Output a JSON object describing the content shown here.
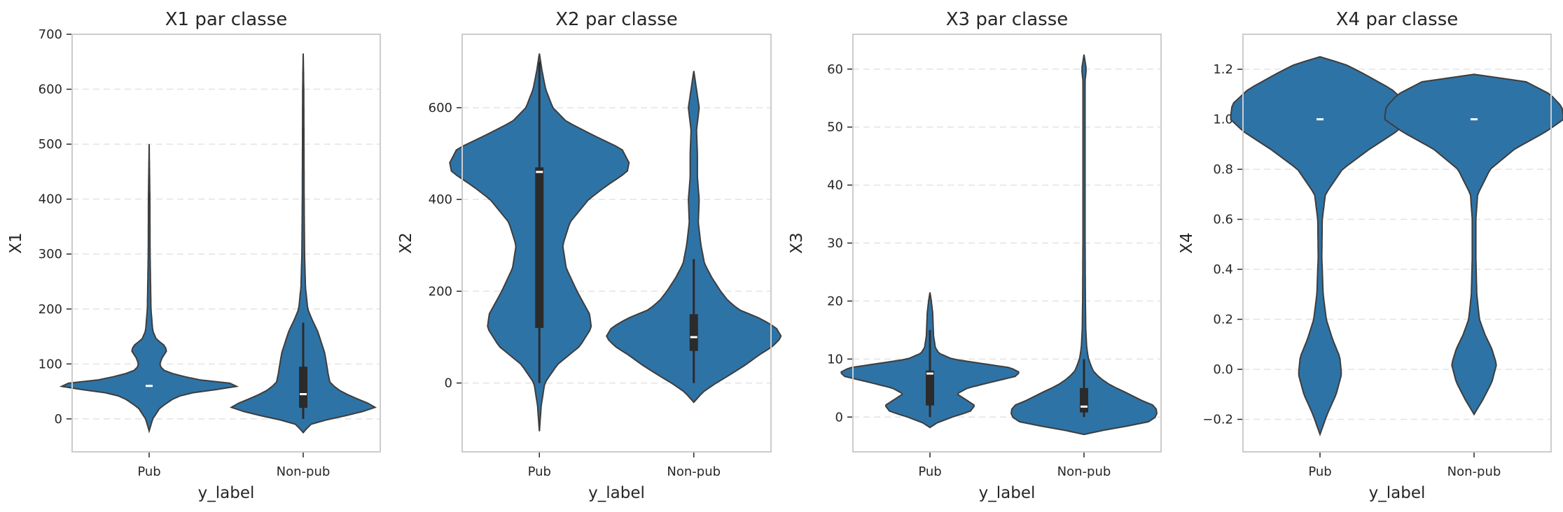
{
  "chart_data": [
    {
      "type": "violin",
      "title": "X1 par classe",
      "xlabel": "y_label",
      "ylabel": "X1",
      "ylim": [
        -60,
        700
      ],
      "yticks": [
        0,
        100,
        200,
        300,
        400,
        500,
        600,
        700
      ],
      "ytick_labels": [
        "0",
        "100",
        "200",
        "300",
        "400",
        "500",
        "600",
        "700"
      ],
      "grid": "y-dashed",
      "categories": [
        "Pub",
        "Non-pub"
      ],
      "series": [
        {
          "category": "Pub",
          "range": [
            -22,
            500
          ],
          "quartiles": [
            60,
            60,
            60
          ],
          "whiskers": [
            60,
            60
          ],
          "profile": [
            [
              -22,
              0.0
            ],
            [
              0,
              0.04
            ],
            [
              20,
              0.12
            ],
            [
              40,
              0.3
            ],
            [
              50,
              0.55
            ],
            [
              55,
              0.85
            ],
            [
              60,
              1.0
            ],
            [
              65,
              0.9
            ],
            [
              70,
              0.6
            ],
            [
              80,
              0.3
            ],
            [
              90,
              0.14
            ],
            [
              100,
              0.12
            ],
            [
              110,
              0.14
            ],
            [
              125,
              0.2
            ],
            [
              135,
              0.16
            ],
            [
              145,
              0.08
            ],
            [
              160,
              0.04
            ],
            [
              200,
              0.02
            ],
            [
              250,
              0.015
            ],
            [
              300,
              0.01
            ],
            [
              400,
              0.008
            ],
            [
              500,
              0.0
            ]
          ]
        },
        {
          "category": "Non-pub",
          "range": [
            -25,
            665
          ],
          "quartiles": [
            20,
            45,
            95
          ],
          "whiskers": [
            0,
            175
          ],
          "profile": [
            [
              -25,
              0.0
            ],
            [
              -10,
              0.08
            ],
            [
              0,
              0.3
            ],
            [
              10,
              0.6
            ],
            [
              22,
              0.82
            ],
            [
              30,
              0.7
            ],
            [
              40,
              0.55
            ],
            [
              50,
              0.42
            ],
            [
              65,
              0.3
            ],
            [
              80,
              0.28
            ],
            [
              100,
              0.26
            ],
            [
              120,
              0.24
            ],
            [
              140,
              0.2
            ],
            [
              160,
              0.16
            ],
            [
              180,
              0.1
            ],
            [
              200,
              0.05
            ],
            [
              240,
              0.025
            ],
            [
              300,
              0.015
            ],
            [
              400,
              0.01
            ],
            [
              500,
              0.008
            ],
            [
              600,
              0.006
            ],
            [
              665,
              0.0
            ]
          ]
        }
      ]
    },
    {
      "type": "violin",
      "title": "X2 par classe",
      "xlabel": "y_label",
      "ylabel": "X2",
      "ylim": [
        -150,
        760
      ],
      "yticks": [
        0,
        200,
        400,
        600
      ],
      "ytick_labels": [
        "0",
        "200",
        "400",
        "600"
      ],
      "grid": "y-dashed",
      "categories": [
        "Pub",
        "Non-pub"
      ],
      "series": [
        {
          "category": "Pub",
          "range": [
            -105,
            718
          ],
          "quartiles": [
            120,
            460,
            470
          ],
          "whiskers": [
            0,
            700
          ],
          "profile": [
            [
              -105,
              0.0
            ],
            [
              -50,
              0.02
            ],
            [
              0,
              0.06
            ],
            [
              40,
              0.2
            ],
            [
              80,
              0.45
            ],
            [
              120,
              0.58
            ],
            [
              150,
              0.56
            ],
            [
              200,
              0.42
            ],
            [
              250,
              0.3
            ],
            [
              300,
              0.26
            ],
            [
              350,
              0.34
            ],
            [
              400,
              0.55
            ],
            [
              430,
              0.75
            ],
            [
              460,
              0.98
            ],
            [
              480,
              1.0
            ],
            [
              510,
              0.92
            ],
            [
              540,
              0.6
            ],
            [
              570,
              0.3
            ],
            [
              600,
              0.15
            ],
            [
              640,
              0.07
            ],
            [
              680,
              0.03
            ],
            [
              718,
              0.0
            ]
          ]
        },
        {
          "category": "Non-pub",
          "range": [
            -42,
            680
          ],
          "quartiles": [
            70,
            100,
            150
          ],
          "whiskers": [
            0,
            270
          ],
          "profile": [
            [
              -42,
              0.0
            ],
            [
              -20,
              0.1
            ],
            [
              0,
              0.25
            ],
            [
              20,
              0.42
            ],
            [
              40,
              0.58
            ],
            [
              60,
              0.72
            ],
            [
              80,
              0.88
            ],
            [
              100,
              0.98
            ],
            [
              120,
              0.92
            ],
            [
              140,
              0.75
            ],
            [
              160,
              0.5
            ],
            [
              180,
              0.38
            ],
            [
              200,
              0.3
            ],
            [
              230,
              0.2
            ],
            [
              260,
              0.12
            ],
            [
              300,
              0.08
            ],
            [
              350,
              0.05
            ],
            [
              400,
              0.06
            ],
            [
              450,
              0.04
            ],
            [
              500,
              0.04
            ],
            [
              550,
              0.03
            ],
            [
              600,
              0.06
            ],
            [
              640,
              0.03
            ],
            [
              680,
              0.0
            ]
          ]
        }
      ]
    },
    {
      "type": "violin",
      "title": "X3 par classe",
      "xlabel": "y_label",
      "ylabel": "X3",
      "ylim": [
        -6,
        66
      ],
      "yticks": [
        0,
        10,
        20,
        30,
        40,
        50,
        60
      ],
      "ytick_labels": [
        "0",
        "10",
        "20",
        "30",
        "40",
        "50",
        "60"
      ],
      "grid": "y-dashed",
      "categories": [
        "Pub",
        "Non-pub"
      ],
      "series": [
        {
          "category": "Pub",
          "range": [
            -1.8,
            21.5
          ],
          "quartiles": [
            2,
            7.5,
            8
          ],
          "whiskers": [
            0,
            15
          ],
          "profile": [
            [
              -1.8,
              0.0
            ],
            [
              -1,
              0.08
            ],
            [
              0,
              0.25
            ],
            [
              1,
              0.45
            ],
            [
              2,
              0.5
            ],
            [
              3,
              0.4
            ],
            [
              4,
              0.3
            ],
            [
              5,
              0.42
            ],
            [
              6,
              0.68
            ],
            [
              7,
              0.95
            ],
            [
              7.7,
              1.0
            ],
            [
              8.5,
              0.9
            ],
            [
              9.3,
              0.55
            ],
            [
              10,
              0.25
            ],
            [
              11,
              0.1
            ],
            [
              12,
              0.06
            ],
            [
              14,
              0.04
            ],
            [
              16,
              0.035
            ],
            [
              18,
              0.03
            ],
            [
              20,
              0.015
            ],
            [
              21.5,
              0.0
            ]
          ]
        },
        {
          "category": "Non-pub",
          "range": [
            -3,
            62.5
          ],
          "quartiles": [
            0.8,
            1.8,
            5
          ],
          "whiskers": [
            0,
            10
          ],
          "profile": [
            [
              -3,
              0.0
            ],
            [
              -2,
              0.3
            ],
            [
              -1,
              0.7
            ],
            [
              0,
              0.8
            ],
            [
              1,
              0.82
            ],
            [
              2,
              0.78
            ],
            [
              3,
              0.62
            ],
            [
              4,
              0.5
            ],
            [
              5,
              0.36
            ],
            [
              6,
              0.24
            ],
            [
              7,
              0.16
            ],
            [
              8,
              0.1
            ],
            [
              10,
              0.05
            ],
            [
              12,
              0.03
            ],
            [
              15,
              0.02
            ],
            [
              20,
              0.015
            ],
            [
              30,
              0.012
            ],
            [
              40,
              0.012
            ],
            [
              50,
              0.012
            ],
            [
              58,
              0.012
            ],
            [
              60,
              0.025
            ],
            [
              62.5,
              0.0
            ]
          ]
        }
      ]
    },
    {
      "type": "violin",
      "title": "X4 par classe",
      "xlabel": "y_label",
      "ylabel": "X4",
      "ylim": [
        -0.33,
        1.34
      ],
      "yticks": [
        -0.2,
        0.0,
        0.2,
        0.4,
        0.6,
        0.8,
        1.0,
        1.2
      ],
      "ytick_labels": [
        "−0.2",
        "0.0",
        "0.2",
        "0.4",
        "0.6",
        "0.8",
        "1.0",
        "1.2"
      ],
      "grid": "y-dashed",
      "categories": [
        "Pub",
        "Non-pub"
      ],
      "series": [
        {
          "category": "Pub",
          "range": [
            -0.26,
            1.25
          ],
          "quartiles": [
            1.0,
            1.0,
            1.0
          ],
          "whiskers": [
            1.0,
            1.0
          ],
          "profile": [
            [
              -0.26,
              0.0
            ],
            [
              -0.18,
              0.08
            ],
            [
              -0.1,
              0.18
            ],
            [
              -0.02,
              0.24
            ],
            [
              0.05,
              0.22
            ],
            [
              0.12,
              0.14
            ],
            [
              0.2,
              0.07
            ],
            [
              0.3,
              0.035
            ],
            [
              0.45,
              0.02
            ],
            [
              0.6,
              0.025
            ],
            [
              0.7,
              0.06
            ],
            [
              0.8,
              0.25
            ],
            [
              0.88,
              0.55
            ],
            [
              0.95,
              0.85
            ],
            [
              1.0,
              1.0
            ],
            [
              1.06,
              0.98
            ],
            [
              1.12,
              0.8
            ],
            [
              1.18,
              0.5
            ],
            [
              1.22,
              0.28
            ],
            [
              1.25,
              0.0
            ]
          ]
        },
        {
          "category": "Non-pub",
          "range": [
            -0.18,
            1.18
          ],
          "quartiles": [
            1.0,
            1.0,
            1.0
          ],
          "whiskers": [
            1.0,
            1.0
          ],
          "profile": [
            [
              -0.18,
              0.0
            ],
            [
              -0.12,
              0.1
            ],
            [
              -0.05,
              0.2
            ],
            [
              0.02,
              0.25
            ],
            [
              0.08,
              0.2
            ],
            [
              0.14,
              0.12
            ],
            [
              0.2,
              0.06
            ],
            [
              0.3,
              0.03
            ],
            [
              0.45,
              0.02
            ],
            [
              0.6,
              0.02
            ],
            [
              0.7,
              0.04
            ],
            [
              0.8,
              0.18
            ],
            [
              0.88,
              0.45
            ],
            [
              0.95,
              0.8
            ],
            [
              1.0,
              1.0
            ],
            [
              1.05,
              0.98
            ],
            [
              1.1,
              0.85
            ],
            [
              1.15,
              0.58
            ],
            [
              1.18,
              0.0
            ]
          ]
        }
      ]
    }
  ]
}
